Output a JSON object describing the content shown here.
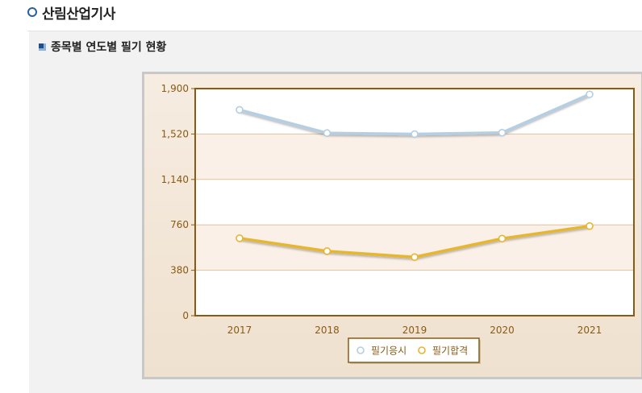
{
  "page": {
    "title": "산림산업기사",
    "section_title": "종목별 연도별 필기 현황"
  },
  "colors": {
    "series_1": "#b4cee3",
    "series_2": "#e6b62e",
    "plot_border": "#8a5a12",
    "axis_text": "#8a5a12",
    "band": "#faf0e8",
    "grid": "#dcc4a0"
  },
  "chart_data": {
    "type": "line",
    "title": "",
    "xlabel": "",
    "ylabel": "",
    "categories": [
      "2017",
      "2018",
      "2019",
      "2020",
      "2021"
    ],
    "ylim": [
      0,
      1900
    ],
    "yticks": [
      0,
      380,
      760,
      1140,
      1520,
      1900
    ],
    "ytick_labels": [
      "0",
      "380",
      "760",
      "1,140",
      "1,520",
      "1,900"
    ],
    "grid": true,
    "legend_position": "bottom",
    "series": [
      {
        "name": "필기응시",
        "values": [
          1722,
          1528,
          1519,
          1531,
          1852
        ]
      },
      {
        "name": "필기합격",
        "values": [
          648,
          540,
          490,
          645,
          750
        ]
      }
    ]
  }
}
